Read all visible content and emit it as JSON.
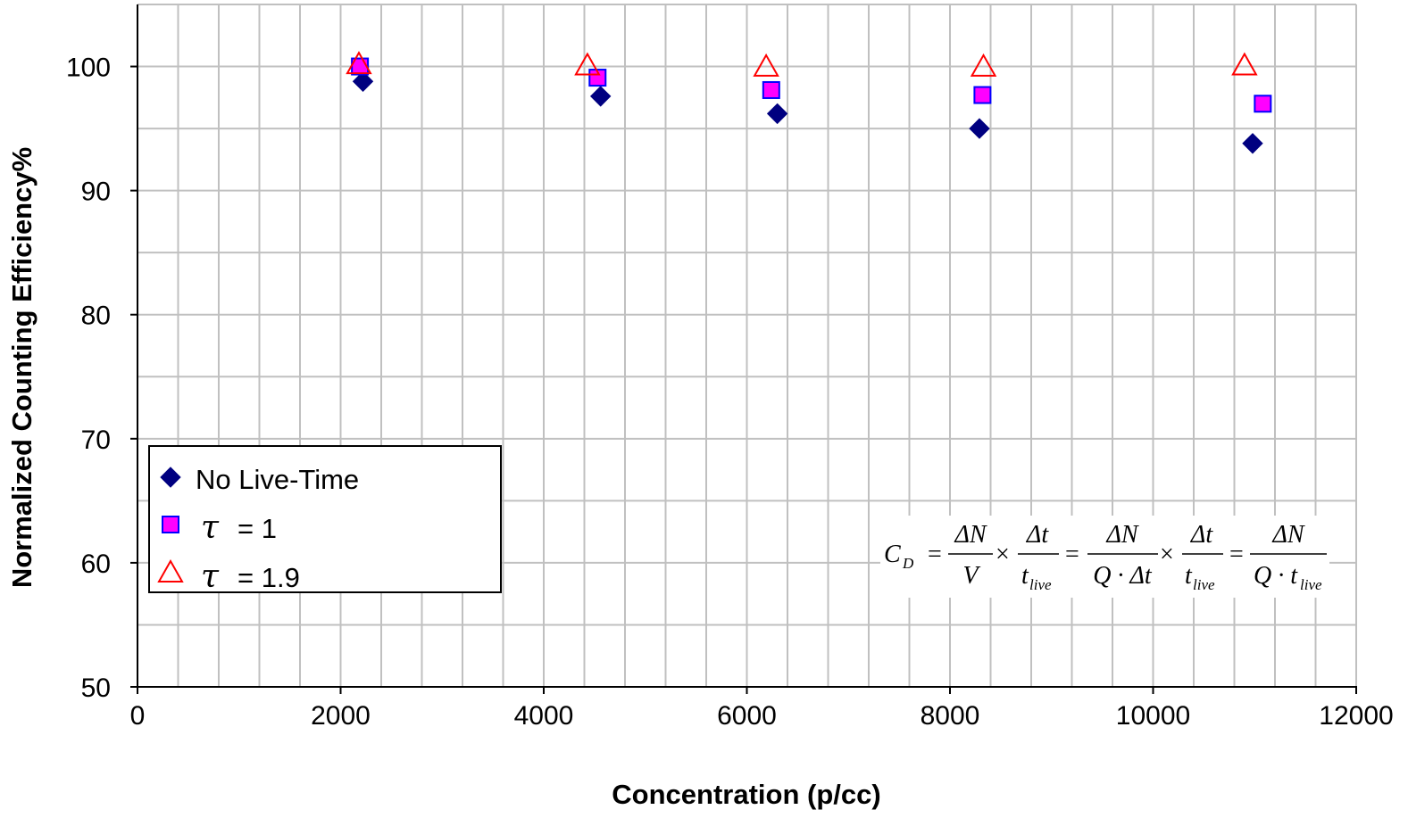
{
  "chart_data": {
    "type": "scatter",
    "title": "",
    "xlabel": "Concentration (p/cc)",
    "ylabel": "Normalized Counting Efficiency%",
    "xlim": [
      0,
      12000
    ],
    "ylim": [
      50,
      105
    ],
    "x_ticks": [
      0,
      2000,
      4000,
      6000,
      8000,
      10000,
      12000
    ],
    "y_ticks": [
      50,
      60,
      70,
      80,
      90,
      100
    ],
    "x_ticks_label": [
      "0",
      "2000",
      "4000",
      "6000",
      "8000",
      "10000",
      "12000"
    ],
    "y_ticks_label": [
      "50",
      "60",
      "70",
      "80",
      "90",
      "100"
    ],
    "x_minor_grid_step": 400,
    "y_minor_grid_step": 5,
    "grid": true,
    "legend_position": "bottom-left",
    "series": [
      {
        "name": "No Live-Time",
        "marker": "diamond",
        "color": "#000080",
        "x": [
          2220,
          4560,
          6300,
          8290,
          10980
        ],
        "y": [
          98.8,
          97.6,
          96.2,
          95.0,
          93.8
        ]
      },
      {
        "name": "τ = 1",
        "marker": "square",
        "color": "#ff00ff",
        "edge_color": "#0000ff",
        "x": [
          2190,
          4530,
          6240,
          8320,
          11080
        ],
        "y": [
          100.0,
          99.1,
          98.1,
          97.7,
          97.0
        ]
      },
      {
        "name": "τ = 1.9",
        "marker": "triangle-open",
        "color": "#ff0000",
        "x": [
          2180,
          4430,
          6190,
          8330,
          10900
        ],
        "y": [
          100.1,
          100.0,
          99.9,
          99.9,
          100.0
        ]
      }
    ],
    "legend": [
      {
        "symbol": "",
        "text": "No Live-Time"
      },
      {
        "symbol": "τ",
        "text": "= 1"
      },
      {
        "symbol": "τ",
        "text": "= 1.9"
      }
    ],
    "annotation": {
      "cd": "C",
      "cd_sub": "D",
      "frac1_num": "ΔN",
      "frac1_den": "V",
      "frac2_num": "Δt",
      "frac2_den": "t",
      "frac2_den_sub": "live",
      "frac3_num": "ΔN",
      "frac3_den": "Q · Δt",
      "frac4_num": "Δt",
      "frac4_den": "t",
      "frac4_den_sub": "live",
      "frac5_num": "ΔN",
      "frac5_den": "Q · t",
      "frac5_den_sub": "live",
      "op_eq": "=",
      "op_times": "×"
    }
  }
}
